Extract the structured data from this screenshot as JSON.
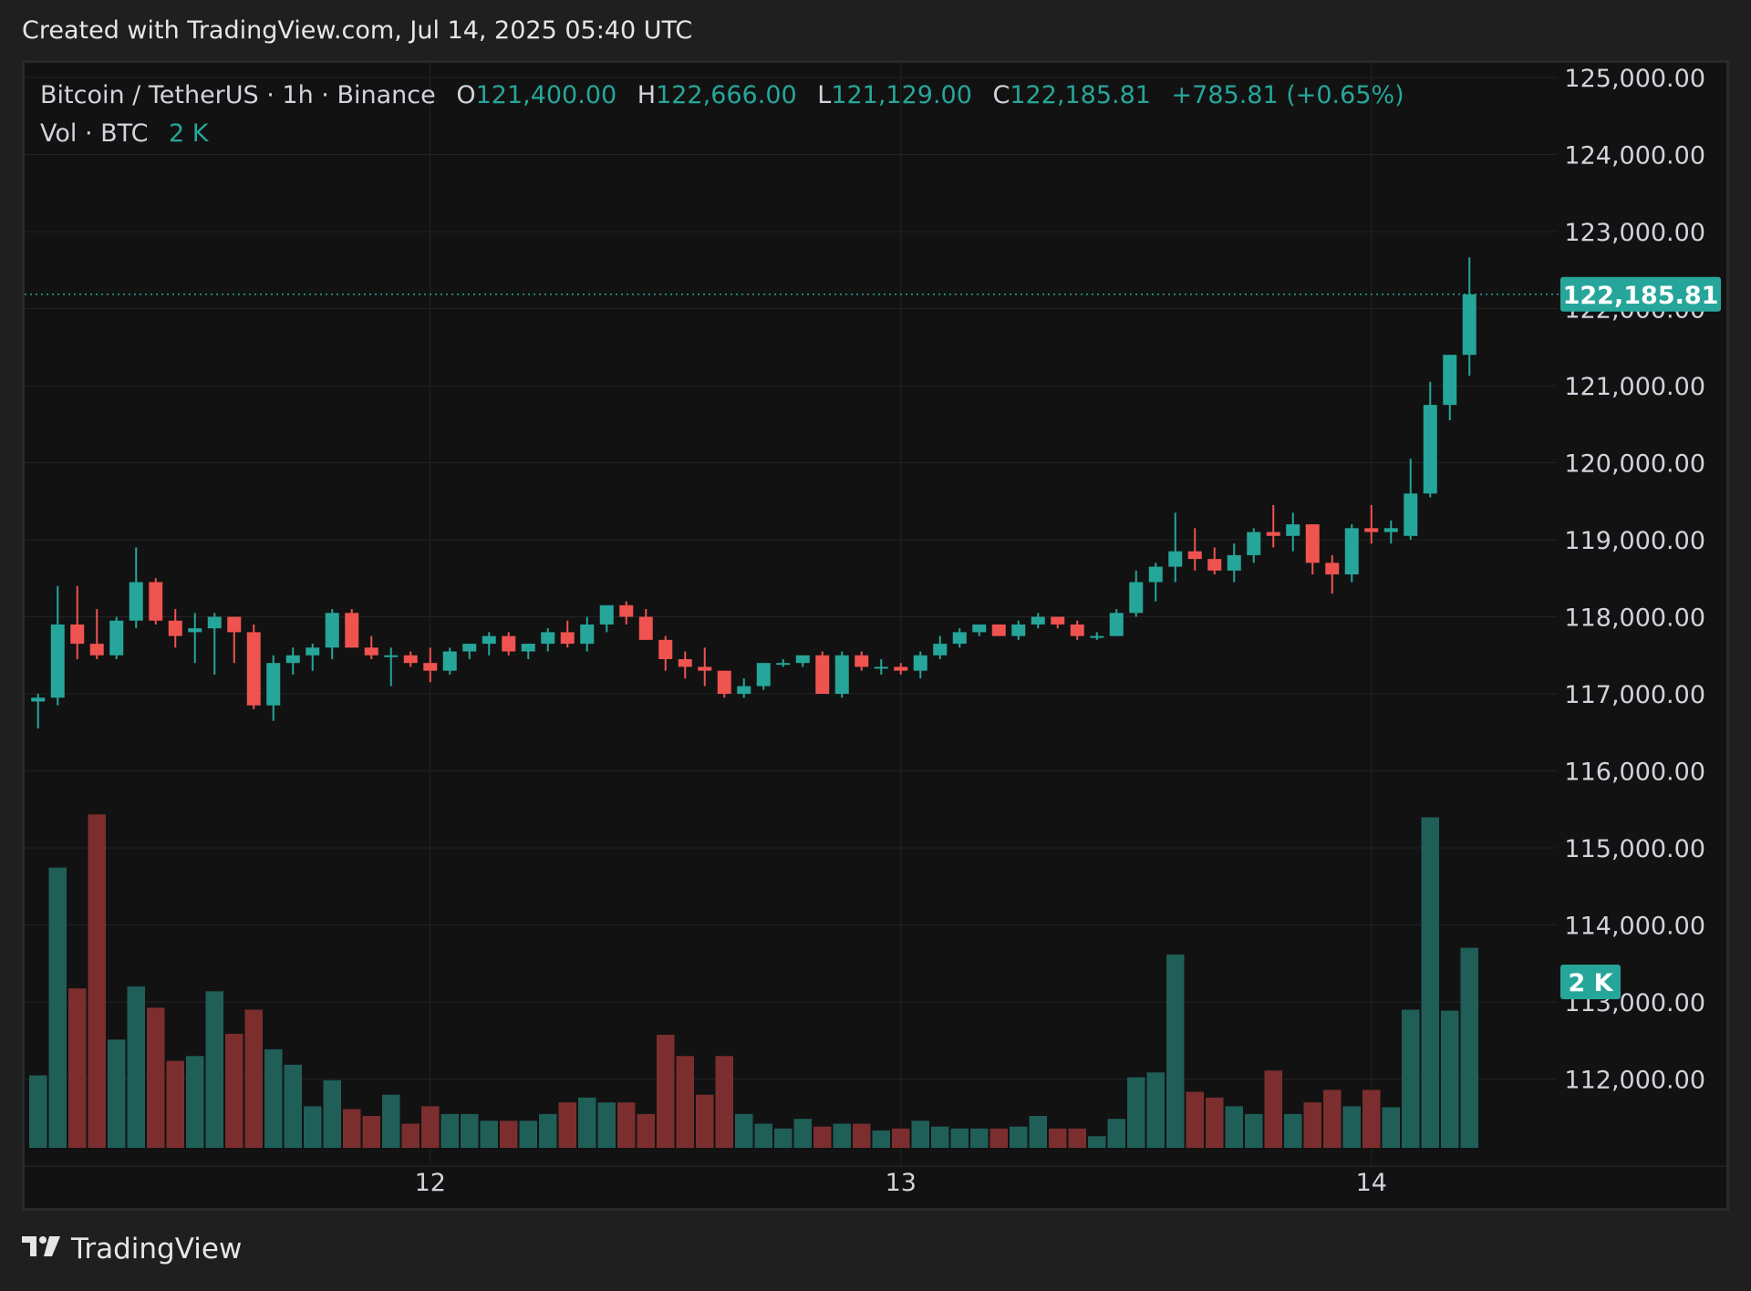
{
  "header": {
    "text": "Created with TradingView.com, Jul 14, 2025 05:40 UTC"
  },
  "legend": {
    "symbol": "Bitcoin / TetherUS · 1h · Binance",
    "open_label": "O",
    "open": "121,400.00",
    "high_label": "H",
    "high": "122,666.00",
    "low_label": "L",
    "low": "121,129.00",
    "close_label": "C",
    "close": "122,185.81",
    "change": "+785.81 (+0.65%)",
    "volume_label": "Vol · BTC",
    "volume": "2 K"
  },
  "footer": {
    "brand": "TradingView",
    "logo_icon": "tradingview-logo-icon"
  },
  "colors": {
    "up": "#26a69a",
    "down": "#ef5350",
    "vol_up": "#1f5f58",
    "vol_down": "#7c2e2e",
    "background": "#121212",
    "grid": "#232323",
    "text": "#d1d4dc"
  },
  "chart_data": {
    "type": "candlestick",
    "interval": "1h",
    "y_axis": {
      "ticks": [
        125000,
        124000,
        123000,
        122000,
        121000,
        120000,
        119000,
        118000,
        117000,
        116000,
        115000,
        114000,
        113000,
        112000
      ],
      "tick_labels": [
        "125,000.00",
        "124,000.00",
        "123,000.00",
        "122,000.00",
        "121,000.00",
        "120,000.00",
        "119,000.00",
        "118,000.00",
        "117,000.00",
        "116,000.00",
        "115,000.00",
        "114,000.00",
        "113,000.00",
        "112,000.00"
      ],
      "range": [
        111000,
        125000
      ]
    },
    "x_axis": {
      "tick_labels": [
        "12",
        "13",
        "14"
      ],
      "tick_bar_index": [
        20,
        44,
        68
      ]
    },
    "last_price_label": "122,185.81",
    "last_price": 122185.81,
    "volume_label": "2 K",
    "grid": true,
    "candles": [
      {
        "o": 116900,
        "h": 117000,
        "l": 116550,
        "c": 116950,
        "v": 0.75
      },
      {
        "o": 116950,
        "h": 118400,
        "l": 116850,
        "c": 117900,
        "v": 2.9
      },
      {
        "o": 117900,
        "h": 118400,
        "l": 117450,
        "c": 117650,
        "v": 1.65
      },
      {
        "o": 117650,
        "h": 118100,
        "l": 117450,
        "c": 117500,
        "v": 3.45
      },
      {
        "o": 117500,
        "h": 118000,
        "l": 117450,
        "c": 117950,
        "v": 1.12
      },
      {
        "o": 117950,
        "h": 118900,
        "l": 117850,
        "c": 118450,
        "v": 1.67
      },
      {
        "o": 118450,
        "h": 118500,
        "l": 117900,
        "c": 117950,
        "v": 1.45
      },
      {
        "o": 117950,
        "h": 118100,
        "l": 117600,
        "c": 117750,
        "v": 0.9
      },
      {
        "o": 117800,
        "h": 118050,
        "l": 117400,
        "c": 117850,
        "v": 0.95
      },
      {
        "o": 117850,
        "h": 118050,
        "l": 117250,
        "c": 118000,
        "v": 1.62
      },
      {
        "o": 118000,
        "h": 118000,
        "l": 117400,
        "c": 117800,
        "v": 1.18
      },
      {
        "o": 117800,
        "h": 117900,
        "l": 116800,
        "c": 116850,
        "v": 1.43
      },
      {
        "o": 116850,
        "h": 117500,
        "l": 116650,
        "c": 117400,
        "v": 1.02
      },
      {
        "o": 117400,
        "h": 117600,
        "l": 117250,
        "c": 117500,
        "v": 0.86
      },
      {
        "o": 117500,
        "h": 117650,
        "l": 117300,
        "c": 117600,
        "v": 0.43
      },
      {
        "o": 117600,
        "h": 118100,
        "l": 117450,
        "c": 118050,
        "v": 0.7
      },
      {
        "o": 118050,
        "h": 118100,
        "l": 117600,
        "c": 117600,
        "v": 0.4
      },
      {
        "o": 117600,
        "h": 117750,
        "l": 117450,
        "c": 117500,
        "v": 0.33
      },
      {
        "o": 117500,
        "h": 117600,
        "l": 117100,
        "c": 117500,
        "v": 0.55
      },
      {
        "o": 117500,
        "h": 117550,
        "l": 117350,
        "c": 117400,
        "v": 0.25
      },
      {
        "o": 117400,
        "h": 117600,
        "l": 117150,
        "c": 117300,
        "v": 0.43
      },
      {
        "o": 117300,
        "h": 117600,
        "l": 117250,
        "c": 117550,
        "v": 0.35
      },
      {
        "o": 117550,
        "h": 117650,
        "l": 117450,
        "c": 117650,
        "v": 0.35
      },
      {
        "o": 117650,
        "h": 117800,
        "l": 117500,
        "c": 117750,
        "v": 0.28
      },
      {
        "o": 117750,
        "h": 117800,
        "l": 117500,
        "c": 117550,
        "v": 0.28
      },
      {
        "o": 117550,
        "h": 117650,
        "l": 117450,
        "c": 117650,
        "v": 0.28
      },
      {
        "o": 117650,
        "h": 117850,
        "l": 117550,
        "c": 117800,
        "v": 0.35
      },
      {
        "o": 117800,
        "h": 117950,
        "l": 117600,
        "c": 117650,
        "v": 0.47
      },
      {
        "o": 117650,
        "h": 118000,
        "l": 117550,
        "c": 117900,
        "v": 0.52
      },
      {
        "o": 117900,
        "h": 118150,
        "l": 117800,
        "c": 118150,
        "v": 0.47
      },
      {
        "o": 118150,
        "h": 118200,
        "l": 117900,
        "c": 118000,
        "v": 0.47
      },
      {
        "o": 118000,
        "h": 118100,
        "l": 117700,
        "c": 117700,
        "v": 0.35
      },
      {
        "o": 117700,
        "h": 117750,
        "l": 117300,
        "c": 117450,
        "v": 1.17
      },
      {
        "o": 117450,
        "h": 117550,
        "l": 117200,
        "c": 117350,
        "v": 0.95
      },
      {
        "o": 117350,
        "h": 117600,
        "l": 117100,
        "c": 117300,
        "v": 0.55
      },
      {
        "o": 117300,
        "h": 117300,
        "l": 116950,
        "c": 117000,
        "v": 0.95
      },
      {
        "o": 117000,
        "h": 117200,
        "l": 116950,
        "c": 117100,
        "v": 0.35
      },
      {
        "o": 117100,
        "h": 117400,
        "l": 117050,
        "c": 117400,
        "v": 0.25
      },
      {
        "o": 117400,
        "h": 117450,
        "l": 117350,
        "c": 117400,
        "v": 0.2
      },
      {
        "o": 117400,
        "h": 117500,
        "l": 117350,
        "c": 117500,
        "v": 0.3
      },
      {
        "o": 117500,
        "h": 117550,
        "l": 117000,
        "c": 117000,
        "v": 0.22
      },
      {
        "o": 117000,
        "h": 117550,
        "l": 116950,
        "c": 117500,
        "v": 0.25
      },
      {
        "o": 117500,
        "h": 117550,
        "l": 117300,
        "c": 117350,
        "v": 0.25
      },
      {
        "o": 117350,
        "h": 117450,
        "l": 117250,
        "c": 117350,
        "v": 0.18
      },
      {
        "o": 117350,
        "h": 117400,
        "l": 117250,
        "c": 117300,
        "v": 0.2
      },
      {
        "o": 117300,
        "h": 117550,
        "l": 117200,
        "c": 117500,
        "v": 0.28
      },
      {
        "o": 117500,
        "h": 117750,
        "l": 117450,
        "c": 117650,
        "v": 0.22
      },
      {
        "o": 117650,
        "h": 117850,
        "l": 117600,
        "c": 117800,
        "v": 0.2
      },
      {
        "o": 117800,
        "h": 117900,
        "l": 117750,
        "c": 117900,
        "v": 0.2
      },
      {
        "o": 117900,
        "h": 117900,
        "l": 117750,
        "c": 117750,
        "v": 0.2
      },
      {
        "o": 117750,
        "h": 117950,
        "l": 117700,
        "c": 117900,
        "v": 0.22
      },
      {
        "o": 117900,
        "h": 118050,
        "l": 117850,
        "c": 118000,
        "v": 0.33
      },
      {
        "o": 118000,
        "h": 118000,
        "l": 117850,
        "c": 117900,
        "v": 0.2
      },
      {
        "o": 117900,
        "h": 117950,
        "l": 117700,
        "c": 117750,
        "v": 0.2
      },
      {
        "o": 117750,
        "h": 117800,
        "l": 117700,
        "c": 117750,
        "v": 0.12
      },
      {
        "o": 117750,
        "h": 118100,
        "l": 117750,
        "c": 118050,
        "v": 0.3
      },
      {
        "o": 118050,
        "h": 118600,
        "l": 118000,
        "c": 118450,
        "v": 0.73
      },
      {
        "o": 118450,
        "h": 118700,
        "l": 118200,
        "c": 118650,
        "v": 0.78
      },
      {
        "o": 118650,
        "h": 119350,
        "l": 118450,
        "c": 118850,
        "v": 2.0
      },
      {
        "o": 118850,
        "h": 119150,
        "l": 118600,
        "c": 118750,
        "v": 0.58
      },
      {
        "o": 118750,
        "h": 118900,
        "l": 118550,
        "c": 118600,
        "v": 0.52
      },
      {
        "o": 118600,
        "h": 118950,
        "l": 118450,
        "c": 118800,
        "v": 0.43
      },
      {
        "o": 118800,
        "h": 119150,
        "l": 118700,
        "c": 119100,
        "v": 0.35
      },
      {
        "o": 119100,
        "h": 119450,
        "l": 118900,
        "c": 119050,
        "v": 0.8
      },
      {
        "o": 119050,
        "h": 119350,
        "l": 118850,
        "c": 119200,
        "v": 0.35
      },
      {
        "o": 119200,
        "h": 119200,
        "l": 118550,
        "c": 118700,
        "v": 0.47
      },
      {
        "o": 118700,
        "h": 118800,
        "l": 118300,
        "c": 118550,
        "v": 0.6
      },
      {
        "o": 118550,
        "h": 119200,
        "l": 118450,
        "c": 119150,
        "v": 0.43
      },
      {
        "o": 119150,
        "h": 119450,
        "l": 118950,
        "c": 119100,
        "v": 0.6
      },
      {
        "o": 119100,
        "h": 119250,
        "l": 118950,
        "c": 119150,
        "v": 0.42
      },
      {
        "o": 119050,
        "h": 120050,
        "l": 119000,
        "c": 119600,
        "v": 1.43
      },
      {
        "o": 119600,
        "h": 121050,
        "l": 119550,
        "c": 120750,
        "v": 3.42
      },
      {
        "o": 120750,
        "h": 121400,
        "l": 120550,
        "c": 121400,
        "v": 1.42
      },
      {
        "o": 121400,
        "h": 122666,
        "l": 121129,
        "c": 122185.81,
        "v": 2.07
      }
    ]
  }
}
